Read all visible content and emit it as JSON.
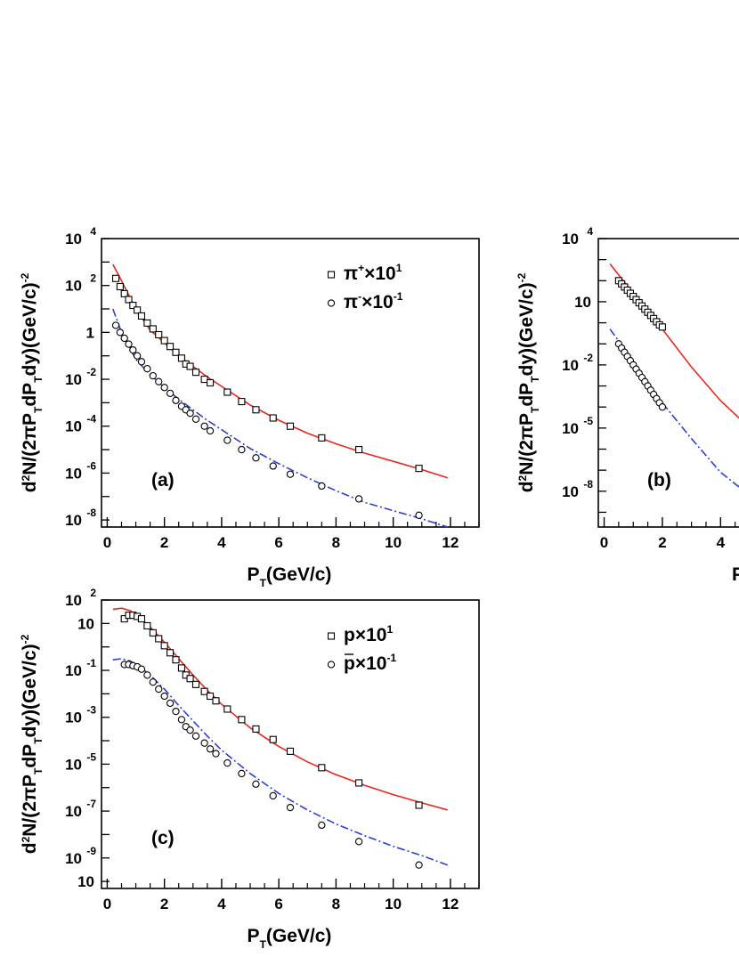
{
  "chart_data": [
    {
      "type": "scatter",
      "panel_label": "(a)",
      "xlabel": "P_T(GeV/c)",
      "ylabel": "d^2N/(2πP_TdP_Tdy)(GeV/c)^-2",
      "xlim": [
        -0.2,
        13
      ],
      "ylim_log10": [
        -8.3,
        4
      ],
      "xticks": [
        "0",
        "2",
        "4",
        "6",
        "8",
        "10",
        "12"
      ],
      "yticks": [
        {
          "v": 4,
          "base": "10",
          "exp": "4"
        },
        {
          "v": 2,
          "base": "10",
          "exp": "2"
        },
        {
          "v": 0,
          "base": "1",
          "exp": ""
        },
        {
          "v": -2,
          "base": "10",
          "exp": "-2"
        },
        {
          "v": -4,
          "base": "10",
          "exp": "-4"
        },
        {
          "v": -6,
          "base": "10",
          "exp": "-6"
        },
        {
          "v": -8,
          "base": "10",
          "exp": "-8"
        }
      ],
      "legend": [
        {
          "marker": "square",
          "label": "π",
          "sup": "+",
          "scale": "×10",
          "scale_exp": "1"
        },
        {
          "marker": "circle",
          "label": "π",
          "sup": "-",
          "scale": "×10",
          "scale_exp": "-1"
        }
      ],
      "series": [
        {
          "marker": "square",
          "x": [
            0.3,
            0.45,
            0.6,
            0.75,
            0.9,
            1.05,
            1.2,
            1.4,
            1.6,
            1.8,
            2.0,
            2.2,
            2.4,
            2.6,
            2.75,
            2.9,
            3.1,
            3.4,
            3.6,
            4.2,
            4.7,
            5.2,
            5.8,
            6.4,
            7.5,
            8.8,
            10.9
          ],
          "log10y": [
            2.3,
            1.95,
            1.65,
            1.4,
            1.15,
            0.95,
            0.7,
            0.4,
            0.15,
            -0.1,
            -0.35,
            -0.6,
            -0.85,
            -1.1,
            -1.35,
            -1.45,
            -1.7,
            -2.0,
            -2.15,
            -2.55,
            -2.95,
            -3.3,
            -3.65,
            -4.0,
            -4.5,
            -5.0,
            -5.8
          ]
        },
        {
          "marker": "circle",
          "x": [
            0.3,
            0.45,
            0.6,
            0.75,
            0.9,
            1.05,
            1.2,
            1.4,
            1.6,
            1.8,
            2.0,
            2.2,
            2.4,
            2.6,
            2.75,
            2.9,
            3.1,
            3.4,
            3.6,
            4.2,
            4.7,
            5.2,
            5.8,
            6.4,
            7.5,
            8.8,
            10.9
          ],
          "log10y": [
            0.3,
            0.0,
            -0.25,
            -0.5,
            -0.75,
            -1.0,
            -1.25,
            -1.55,
            -1.85,
            -2.1,
            -2.35,
            -2.6,
            -2.9,
            -3.15,
            -3.3,
            -3.45,
            -3.7,
            -4.0,
            -4.2,
            -4.6,
            -5.0,
            -5.35,
            -5.7,
            -6.05,
            -6.55,
            -7.1,
            -7.8
          ]
        }
      ],
      "curves": [
        {
          "style": "solid",
          "color": "#e8281e",
          "x": [
            0.2,
            0.5,
            1.0,
            1.5,
            2.0,
            2.5,
            3.0,
            3.5,
            4.0,
            5.0,
            6.0,
            7.0,
            8.0,
            9.0,
            10.0,
            11.0,
            11.9
          ],
          "log10y": [
            2.9,
            2.2,
            1.0,
            0.1,
            -0.45,
            -1.0,
            -1.45,
            -1.9,
            -2.3,
            -3.1,
            -3.75,
            -4.3,
            -4.75,
            -5.15,
            -5.5,
            -5.85,
            -6.2
          ]
        },
        {
          "style": "dashdot",
          "color": "#2a3fd4",
          "x": [
            0.2,
            0.5,
            1.0,
            1.5,
            2.0,
            2.5,
            3.0,
            3.5,
            4.0,
            5.0,
            6.0,
            7.0,
            8.0,
            9.0,
            10.0,
            11.0,
            11.9
          ],
          "log10y": [
            1.0,
            0.0,
            -1.15,
            -1.8,
            -2.35,
            -2.85,
            -3.3,
            -3.75,
            -4.15,
            -4.95,
            -5.6,
            -6.2,
            -6.75,
            -7.25,
            -7.6,
            -7.95,
            -8.3
          ]
        }
      ]
    },
    {
      "type": "scatter",
      "panel_label": "(b)",
      "xlabel": "P",
      "ylabel": "d^2N/(2πP_TdP_Tdy)(GeV/c)^-2",
      "xlim": [
        -0.2,
        5
      ],
      "ylim_log10": [
        -9.7,
        4
      ],
      "xticks": [
        "0",
        "2",
        "4"
      ],
      "yticks": [
        {
          "v": 4,
          "base": "10",
          "exp": "4"
        },
        {
          "v": 1,
          "base": "10",
          "exp": ""
        },
        {
          "v": -2,
          "base": "10",
          "exp": "-2"
        },
        {
          "v": -5,
          "base": "10",
          "exp": "-5"
        },
        {
          "v": -8,
          "base": "10",
          "exp": "-8"
        }
      ],
      "series": [
        {
          "marker": "square",
          "x": [
            0.5,
            0.6,
            0.7,
            0.8,
            0.9,
            1.0,
            1.1,
            1.2,
            1.3,
            1.4,
            1.5,
            1.6,
            1.7,
            1.8,
            1.9,
            2.0
          ],
          "log10y": [
            2.0,
            1.85,
            1.7,
            1.55,
            1.4,
            1.25,
            1.1,
            0.95,
            0.8,
            0.65,
            0.5,
            0.35,
            0.2,
            0.05,
            -0.1,
            -0.2
          ]
        },
        {
          "marker": "circle",
          "x": [
            0.5,
            0.6,
            0.7,
            0.8,
            0.9,
            1.0,
            1.1,
            1.2,
            1.3,
            1.4,
            1.5,
            1.6,
            1.7,
            1.8,
            1.9,
            2.0
          ],
          "log10y": [
            -1.0,
            -1.2,
            -1.4,
            -1.6,
            -1.8,
            -2.0,
            -2.2,
            -2.4,
            -2.6,
            -2.8,
            -3.0,
            -3.2,
            -3.4,
            -3.6,
            -3.8,
            -4.0
          ]
        }
      ],
      "curves": [
        {
          "style": "solid",
          "color": "#e8281e",
          "x": [
            0.2,
            1.0,
            2.0,
            3.0,
            4.0,
            5.0
          ],
          "log10y": [
            2.8,
            1.4,
            -0.3,
            -2.1,
            -3.7,
            -5.0
          ]
        },
        {
          "style": "dashdot",
          "color": "#2a3fd4",
          "x": [
            0.2,
            1.0,
            2.0,
            3.0,
            4.0,
            5.0
          ],
          "log10y": [
            -0.3,
            -1.8,
            -3.8,
            -5.5,
            -7.1,
            -8.2
          ]
        }
      ]
    },
    {
      "type": "scatter",
      "panel_label": "(c)",
      "xlabel": "P_T(GeV/c)",
      "ylabel": "d^2N/(2πP_TdP_Tdy)(GeV/c)^-2",
      "xlim": [
        -0.2,
        13
      ],
      "ylim_log10": [
        -10.3,
        2
      ],
      "xticks": [
        "0",
        "2",
        "4",
        "6",
        "8",
        "10",
        "12"
      ],
      "yticks": [
        {
          "v": 2,
          "base": "10",
          "exp": "2"
        },
        {
          "v": 1,
          "base": "10",
          "exp": ""
        },
        {
          "v": -1,
          "base": "10",
          "exp": "-1"
        },
        {
          "v": -3,
          "base": "10",
          "exp": "-3"
        },
        {
          "v": -5,
          "base": "10",
          "exp": "-5"
        },
        {
          "v": -7,
          "base": "10",
          "exp": "-7"
        },
        {
          "v": -9,
          "base": "10",
          "exp": "-9"
        },
        {
          "v": -10,
          "base": "10",
          "exp": ""
        }
      ],
      "legend": [
        {
          "marker": "square",
          "label": "p",
          "sup": "",
          "scale": "×10",
          "scale_exp": "1"
        },
        {
          "marker": "circle",
          "label": "p",
          "sup": "",
          "overline": true,
          "scale": "×10",
          "scale_exp": "-1"
        }
      ],
      "series": [
        {
          "marker": "square",
          "x": [
            0.6,
            0.75,
            0.9,
            1.05,
            1.2,
            1.4,
            1.6,
            1.8,
            2.0,
            2.2,
            2.4,
            2.6,
            2.75,
            2.9,
            3.1,
            3.4,
            3.6,
            3.8,
            4.2,
            4.7,
            5.2,
            5.8,
            6.4,
            7.5,
            8.8,
            10.9
          ],
          "log10y": [
            1.2,
            1.35,
            1.35,
            1.3,
            1.2,
            0.9,
            0.6,
            0.35,
            0.05,
            -0.25,
            -0.55,
            -0.9,
            -1.2,
            -1.35,
            -1.6,
            -1.9,
            -2.1,
            -2.3,
            -2.65,
            -3.1,
            -3.5,
            -3.95,
            -4.45,
            -5.15,
            -5.8,
            -6.75
          ]
        },
        {
          "marker": "circle",
          "x": [
            0.6,
            0.75,
            0.9,
            1.05,
            1.2,
            1.4,
            1.6,
            1.8,
            2.0,
            2.2,
            2.4,
            2.6,
            2.75,
            2.9,
            3.1,
            3.4,
            3.6,
            3.8,
            4.2,
            4.7,
            5.2,
            5.8,
            6.4,
            7.5,
            8.8,
            10.9
          ],
          "log10y": [
            -0.75,
            -0.75,
            -0.8,
            -0.85,
            -0.95,
            -1.2,
            -1.5,
            -1.8,
            -2.1,
            -2.4,
            -2.75,
            -3.1,
            -3.4,
            -3.55,
            -3.8,
            -4.1,
            -4.35,
            -4.55,
            -4.95,
            -5.4,
            -5.85,
            -6.35,
            -6.85,
            -7.6,
            -8.3,
            -9.3
          ]
        }
      ],
      "curves": [
        {
          "style": "solid",
          "color": "#e8281e",
          "x": [
            0.2,
            0.5,
            0.8,
            1.1,
            1.5,
            2.0,
            2.5,
            3.0,
            3.5,
            4.0,
            5.0,
            6.0,
            7.0,
            8.0,
            9.0,
            10.0,
            11.0,
            11.9
          ],
          "log10y": [
            1.6,
            1.65,
            1.55,
            1.3,
            0.85,
            0.2,
            -0.5,
            -1.2,
            -1.85,
            -2.45,
            -3.45,
            -4.25,
            -4.9,
            -5.45,
            -5.9,
            -6.3,
            -6.65,
            -6.95
          ]
        },
        {
          "style": "dashdot",
          "color": "#2a3fd4",
          "x": [
            0.2,
            0.5,
            0.8,
            1.1,
            1.5,
            2.0,
            2.5,
            3.0,
            3.5,
            4.0,
            5.0,
            6.0,
            7.0,
            8.0,
            9.0,
            10.0,
            11.0,
            11.9
          ],
          "log10y": [
            -0.55,
            -0.5,
            -0.6,
            -0.8,
            -1.2,
            -1.8,
            -2.5,
            -3.15,
            -3.8,
            -4.4,
            -5.4,
            -6.25,
            -6.95,
            -7.55,
            -8.05,
            -8.5,
            -8.9,
            -9.3
          ]
        }
      ]
    }
  ]
}
